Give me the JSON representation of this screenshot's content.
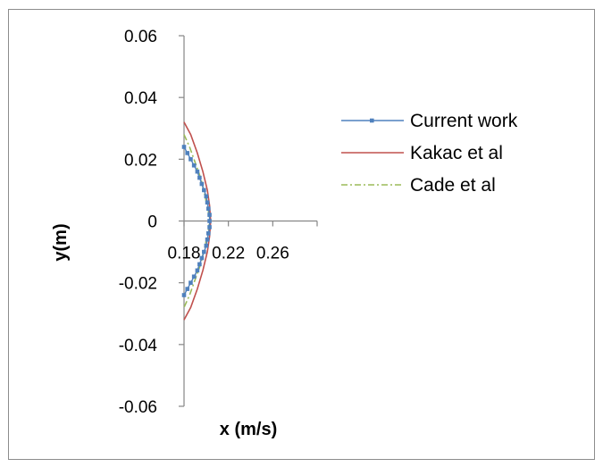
{
  "chart_data": {
    "type": "line",
    "title": "",
    "xlabel": "x (m/s)",
    "ylabel": "y(m)",
    "xlim": [
      0.18,
      0.3
    ],
    "ylim": [
      -0.06,
      0.06
    ],
    "x_ticks": [
      "0.18",
      "0.22",
      "0.26"
    ],
    "y_ticks": [
      "0.06",
      "0.04",
      "0.02",
      "0",
      "-0.02",
      "-0.04",
      "-0.06"
    ],
    "legend_position": "right",
    "series": [
      {
        "name": "Current work",
        "color": "#4f81bd",
        "marker": "square",
        "points": [
          [
            0.18,
            0.024
          ],
          [
            0.183,
            0.022
          ],
          [
            0.186,
            0.02
          ],
          [
            0.189,
            0.018
          ],
          [
            0.192,
            0.016
          ],
          [
            0.194,
            0.014
          ],
          [
            0.196,
            0.012
          ],
          [
            0.198,
            0.01
          ],
          [
            0.2,
            0.008
          ],
          [
            0.201,
            0.006
          ],
          [
            0.202,
            0.004
          ],
          [
            0.203,
            0.002
          ],
          [
            0.203,
            0.0
          ],
          [
            0.203,
            -0.002
          ],
          [
            0.202,
            -0.004
          ],
          [
            0.201,
            -0.006
          ],
          [
            0.2,
            -0.008
          ],
          [
            0.198,
            -0.01
          ],
          [
            0.196,
            -0.012
          ],
          [
            0.194,
            -0.014
          ],
          [
            0.192,
            -0.016
          ],
          [
            0.189,
            -0.018
          ],
          [
            0.186,
            -0.02
          ],
          [
            0.183,
            -0.022
          ],
          [
            0.18,
            -0.024
          ]
        ]
      },
      {
        "name": "Kakac et al",
        "color": "#c0504d",
        "marker": "none",
        "points": [
          [
            0.18,
            0.032
          ],
          [
            0.186,
            0.028
          ],
          [
            0.192,
            0.022
          ],
          [
            0.197,
            0.016
          ],
          [
            0.201,
            0.01
          ],
          [
            0.203,
            0.005
          ],
          [
            0.204,
            0.0
          ],
          [
            0.203,
            -0.005
          ],
          [
            0.201,
            -0.01
          ],
          [
            0.197,
            -0.016
          ],
          [
            0.192,
            -0.022
          ],
          [
            0.186,
            -0.028
          ],
          [
            0.18,
            -0.032
          ]
        ]
      },
      {
        "name": "Cade et al",
        "color": "#9bbb59",
        "marker": "none",
        "points": [
          [
            0.18,
            0.028
          ],
          [
            0.185,
            0.024
          ],
          [
            0.19,
            0.019
          ],
          [
            0.195,
            0.014
          ],
          [
            0.199,
            0.008
          ],
          [
            0.202,
            0.003
          ],
          [
            0.203,
            0.0
          ],
          [
            0.202,
            -0.003
          ],
          [
            0.199,
            -0.008
          ],
          [
            0.195,
            -0.014
          ],
          [
            0.19,
            -0.019
          ],
          [
            0.185,
            -0.024
          ],
          [
            0.18,
            -0.028
          ]
        ]
      }
    ]
  }
}
